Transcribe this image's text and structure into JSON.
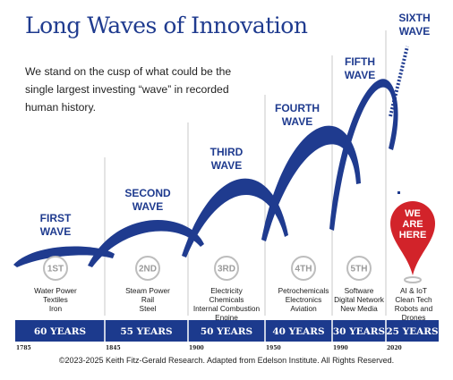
{
  "title": "Long Waves of Innovation",
  "intro": "We stand on the cusp of what could be the single largest investing “wave” in recorded human history.",
  "colors": {
    "navy": "#1f3b8f",
    "band": "#1c3a8d",
    "red": "#d2232a",
    "circle_gray": "#bdbdbd"
  },
  "waves": [
    {
      "label_lines": [
        "FIRST",
        "WAVE"
      ],
      "ordinal": "1ST",
      "innovations": [
        "Water Power",
        "Textiles",
        "Iron"
      ],
      "duration": "60 YEARS"
    },
    {
      "label_lines": [
        "SECOND",
        "WAVE"
      ],
      "ordinal": "2ND",
      "innovations": [
        "Steam Power",
        "Rail",
        "Steel"
      ],
      "duration": "55 YEARS"
    },
    {
      "label_lines": [
        "THIRD",
        "WAVE"
      ],
      "ordinal": "3RD",
      "innovations": [
        "Electricity",
        "Chemicals",
        "Internal Combustion",
        "Engine"
      ],
      "duration": "50 YEARS"
    },
    {
      "label_lines": [
        "FOURTH",
        "WAVE"
      ],
      "ordinal": "4TH",
      "innovations": [
        "Petrochemicals",
        "Electronics",
        "Aviation"
      ],
      "duration": "40 YEARS"
    },
    {
      "label_lines": [
        "FIFTH",
        "WAVE"
      ],
      "ordinal": "5TH",
      "innovations": [
        "Software",
        "Digital Network",
        "New Media"
      ],
      "duration": "30 YEARS"
    },
    {
      "label_lines": [
        "SIXTH",
        "WAVE"
      ],
      "ordinal": "",
      "innovations": [
        "AI & IoT",
        "Clean Tech",
        "Robots and",
        "Drones"
      ],
      "duration": "25 YEARS"
    }
  ],
  "years": [
    "1785",
    "1845",
    "1900",
    "1950",
    "1990",
    "2020"
  ],
  "marker_lines": [
    "WE",
    "ARE",
    "HERE"
  ],
  "footer": "©2023-2025 Keith Fitz-Gerald Research. Adapted from Edelson Institute. All Rights Reserved."
}
